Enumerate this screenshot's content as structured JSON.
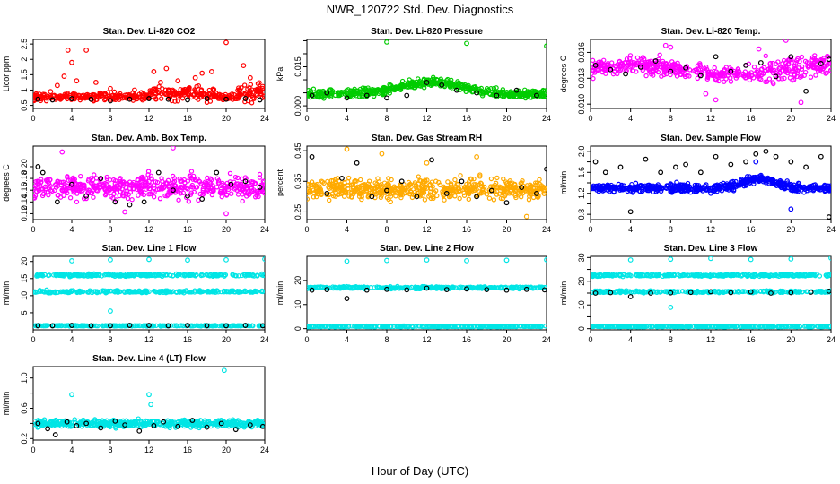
{
  "figure": {
    "title": "NWR_120722 Std. Dev. Diagnostics",
    "xlabel": "Hour of Day (UTC)"
  },
  "chart_data": [
    {
      "id": "co2",
      "type": "scatter",
      "title": "Stan. Dev. Li-820 CO2",
      "ylabel": "Licor ppm",
      "xlim": [
        0,
        24
      ],
      "ylim": [
        0.4,
        2.65
      ],
      "xticks": [
        0,
        4,
        8,
        12,
        16,
        20,
        24
      ],
      "yticks": [
        0.5,
        1.0,
        1.5,
        2.0,
        2.5
      ],
      "ytick_labels": [
        "0.5",
        "1",
        "1.5",
        "2",
        "2.5"
      ],
      "colors": [
        "#ff0000",
        "#000000"
      ],
      "series": [
        {
          "color": "#ff0000",
          "x": [
            0.5,
            1.8,
            2.5,
            3.2,
            3.6,
            4.0,
            4.5,
            5.5,
            6.5,
            8.0,
            10.5,
            12.5,
            13.2,
            13.8,
            15.0,
            16.8,
            17.5,
            18.5,
            20.0,
            21.8,
            22.5,
            23.2
          ],
          "y": [
            0.72,
            0.95,
            1.15,
            1.45,
            2.3,
            1.9,
            1.3,
            2.3,
            1.25,
            1.05,
            1.0,
            1.6,
            1.25,
            1.7,
            1.3,
            1.4,
            1.55,
            1.6,
            2.55,
            1.8,
            1.4,
            1.0
          ]
        },
        {
          "color": "#000000",
          "x": [
            0.5,
            2.0,
            4.0,
            6.0,
            8.0,
            10.0,
            12.0,
            14.0,
            16.0,
            18.0,
            20.0,
            22.0,
            23.5
          ],
          "y": [
            0.7,
            0.68,
            0.72,
            0.7,
            0.65,
            0.7,
            0.72,
            0.7,
            0.68,
            0.72,
            0.7,
            0.72,
            0.68
          ]
        }
      ]
    },
    {
      "id": "press",
      "type": "scatter",
      "title": "Stan. Dev. Li-820 Pressure",
      "ylabel": "kPa",
      "xlim": [
        0,
        24
      ],
      "ylim": [
        -0.001,
        0.0255
      ],
      "xticks": [
        0,
        4,
        8,
        12,
        16,
        20,
        24
      ],
      "yticks": [
        0.0,
        0.005,
        0.01,
        0.015,
        0.02,
        0.025
      ],
      "ytick_labels": [
        "0.000",
        "",
        "",
        "0.015",
        "",
        ""
      ],
      "colors": [
        "#00cc00",
        "#000000"
      ],
      "series": [
        {
          "color": "#00cc00",
          "x": [
            8.0,
            16.0,
            24.0
          ],
          "y": [
            0.0245,
            0.024,
            0.023
          ]
        },
        {
          "color": "#000000",
          "x": [
            0.5,
            2.0,
            4.0,
            6.0,
            8.0,
            10.0,
            12.0,
            13.5,
            15.0,
            17.0,
            19.0,
            21.0,
            23.0
          ],
          "y": [
            0.004,
            0.005,
            0.003,
            0.004,
            0.003,
            0.004,
            0.009,
            0.008,
            0.006,
            0.005,
            0.004,
            0.006,
            0.004
          ]
        }
      ]
    },
    {
      "id": "temp",
      "type": "scatter",
      "title": "Stan. Dev. Li-820 Temp.",
      "ylabel": "degrees C",
      "xlim": [
        0,
        24
      ],
      "ylim": [
        0.0095,
        0.0175
      ],
      "xticks": [
        0,
        4,
        8,
        12,
        16,
        20,
        24
      ],
      "yticks": [
        0.01,
        0.013,
        0.016
      ],
      "ytick_labels": [
        "0.010",
        "0.013",
        "0.016"
      ],
      "colors": [
        "#ff00ff",
        "#000000"
      ],
      "series": [
        {
          "color": "#ff00ff",
          "x": [
            7.5,
            8.0,
            16.8,
            19.5,
            12.5,
            11.5,
            21.0
          ],
          "y": [
            0.0168,
            0.0166,
            0.0164,
            0.0174,
            0.0105,
            0.0112,
            0.0102
          ]
        },
        {
          "color": "#000000",
          "x": [
            0.5,
            2.0,
            3.5,
            5.0,
            6.5,
            8.0,
            9.5,
            11.0,
            12.5,
            14.0,
            15.5,
            17.0,
            18.5,
            20.0,
            21.5,
            23.0,
            23.8
          ],
          "y": [
            0.0145,
            0.014,
            0.0135,
            0.0143,
            0.015,
            0.0138,
            0.0142,
            0.0133,
            0.0155,
            0.0138,
            0.0145,
            0.0148,
            0.0132,
            0.0155,
            0.0115,
            0.0147,
            0.0152
          ]
        }
      ]
    },
    {
      "id": "box",
      "type": "scatter",
      "title": "Stan. Dev. Amb. Box Temp.",
      "ylabel": "degrees C",
      "xlim": [
        0,
        24
      ],
      "ylim": [
        0.11,
        0.235
      ],
      "xticks": [
        0,
        4,
        8,
        12,
        16,
        20,
        24
      ],
      "yticks": [
        0.12,
        0.14,
        0.16,
        0.18,
        0.2
      ],
      "ytick_labels": [
        "0.12",
        "0.14",
        "0.16",
        "0.18",
        "0.20"
      ],
      "colors": [
        "#ff00ff",
        "#000000"
      ],
      "series": [
        {
          "color": "#ff00ff",
          "x": [
            14.5,
            3.0,
            20.0,
            9.5
          ],
          "y": [
            0.232,
            0.225,
            0.12,
            0.123
          ]
        },
        {
          "color": "#000000",
          "x": [
            0.5,
            1.0,
            2.5,
            4.0,
            5.5,
            7.0,
            8.5,
            10.0,
            11.5,
            13.0,
            14.5,
            16.0,
            17.5,
            19.0,
            20.5,
            22.0,
            23.5
          ],
          "y": [
            0.2,
            0.19,
            0.14,
            0.17,
            0.15,
            0.18,
            0.14,
            0.135,
            0.14,
            0.19,
            0.16,
            0.15,
            0.145,
            0.19,
            0.17,
            0.175,
            0.165
          ]
        }
      ]
    },
    {
      "id": "rh",
      "type": "scatter",
      "title": "Stan. Dev. Gas Stream RH",
      "ylabel": "percent",
      "xlim": [
        0,
        24
      ],
      "ylim": [
        0.225,
        0.465
      ],
      "xticks": [
        0,
        4,
        8,
        12,
        16,
        20,
        24
      ],
      "yticks": [
        0.25,
        0.35,
        0.45
      ],
      "ytick_labels": [
        "0.25",
        "0.35",
        "0.45"
      ],
      "colors": [
        "#ffaa00",
        "#000000"
      ],
      "series": [
        {
          "color": "#ffaa00",
          "x": [
            4.0,
            7.5,
            12.0,
            17.0,
            22.0
          ],
          "y": [
            0.455,
            0.44,
            0.41,
            0.43,
            0.235
          ]
        },
        {
          "color": "#000000",
          "x": [
            0.5,
            2.0,
            3.5,
            5.0,
            6.5,
            8.0,
            9.5,
            11.0,
            12.5,
            14.0,
            15.5,
            17.0,
            18.5,
            20.0,
            21.5,
            23.0,
            24.0
          ],
          "y": [
            0.43,
            0.31,
            0.36,
            0.41,
            0.3,
            0.32,
            0.35,
            0.3,
            0.42,
            0.31,
            0.35,
            0.3,
            0.32,
            0.28,
            0.33,
            0.31,
            0.39
          ]
        }
      ]
    },
    {
      "id": "sample",
      "type": "scatter",
      "title": "Stan. Dev. Sample Flow",
      "ylabel": "ml/min",
      "xlim": [
        0,
        24
      ],
      "ylim": [
        0.7,
        2.1
      ],
      "xticks": [
        0,
        4,
        8,
        12,
        16,
        20,
        24
      ],
      "yticks": [
        0.8,
        1.0,
        1.2,
        1.4,
        1.6,
        1.8,
        2.0
      ],
      "ytick_labels": [
        "0.8",
        "",
        "1.2",
        "",
        "1.6",
        "",
        "2.0"
      ],
      "colors": [
        "#0000ff",
        "#000000"
      ],
      "series": [
        {
          "color": "#0000ff",
          "x": [
            4.0,
            8.0,
            12.0,
            16.5,
            20.0,
            23.5
          ],
          "y": [
            1.25,
            1.35,
            1.2,
            1.8,
            0.9,
            1.3
          ]
        },
        {
          "color": "#000000",
          "x": [
            0.5,
            1.5,
            3.0,
            4.0,
            5.5,
            7.0,
            8.5,
            9.5,
            11.0,
            12.5,
            14.0,
            15.5,
            16.5,
            17.5,
            18.5,
            20.0,
            21.5,
            23.0,
            23.8
          ],
          "y": [
            1.8,
            1.6,
            1.7,
            0.85,
            1.85,
            1.6,
            1.7,
            1.75,
            1.6,
            1.9,
            1.75,
            1.8,
            1.95,
            2.0,
            1.9,
            1.8,
            1.7,
            1.9,
            0.75
          ]
        }
      ]
    },
    {
      "id": "line1",
      "type": "scatter",
      "title": "Stan. Dev. Line 1 Flow",
      "ylabel": "ml/min",
      "xlim": [
        0,
        24
      ],
      "ylim": [
        0,
        21.5
      ],
      "xticks": [
        0,
        4,
        8,
        12,
        16,
        20,
        24
      ],
      "yticks": [
        5,
        10,
        15,
        20
      ],
      "ytick_labels": [
        "5",
        "10",
        "15",
        "20"
      ],
      "colors": [
        "#00e5e5",
        "#000000"
      ],
      "series": [
        {
          "color": "#00e5e5",
          "x": [
            4.0,
            8.0,
            12.0,
            16.0,
            20.0,
            24.0,
            8.0
          ],
          "y": [
            20.2,
            20.5,
            20.6,
            20.4,
            20.5,
            20.7,
            5.5
          ]
        },
        {
          "color": "#000000",
          "x": [
            0.5,
            2.0,
            4.0,
            6.0,
            8.0,
            10.0,
            12.0,
            14.0,
            16.0,
            18.0,
            20.0,
            22.0,
            23.8
          ],
          "y": [
            1.2,
            1.2,
            1.3,
            1.2,
            1.2,
            1.3,
            1.3,
            1.2,
            1.3,
            1.2,
            1.2,
            1.3,
            1.2
          ]
        }
      ]
    },
    {
      "id": "line2",
      "type": "scatter",
      "title": "Stan. Dev. Line 2 Flow",
      "ylabel": "ml/min",
      "xlim": [
        0,
        24
      ],
      "ylim": [
        -0.5,
        30
      ],
      "xticks": [
        0,
        4,
        8,
        12,
        16,
        20,
        24
      ],
      "yticks": [
        0,
        10,
        20
      ],
      "ytick_labels": [
        "0",
        "10",
        "20"
      ],
      "colors": [
        "#00e5e5",
        "#000000"
      ],
      "series": [
        {
          "color": "#00e5e5",
          "x": [
            4.0,
            8.0,
            12.0,
            16.0,
            20.0,
            24.0
          ],
          "y": [
            28.0,
            28.3,
            28.5,
            28.2,
            28.4,
            28.6
          ]
        },
        {
          "color": "#000000",
          "x": [
            0.5,
            2.0,
            4.0,
            6.0,
            8.0,
            10.0,
            12.0,
            14.0,
            16.0,
            18.0,
            20.0,
            22.0,
            23.8
          ],
          "y": [
            16.0,
            16.2,
            12.5,
            16.0,
            16.3,
            16.1,
            16.8,
            16.2,
            16.5,
            16.2,
            16.0,
            16.3,
            16.1
          ]
        }
      ]
    },
    {
      "id": "line3",
      "type": "scatter",
      "title": "Stan. Dev. Line 3 Flow",
      "ylabel": "ml/min",
      "xlim": [
        0,
        24
      ],
      "ylim": [
        -0.5,
        30.5
      ],
      "xticks": [
        0,
        4,
        8,
        12,
        16,
        20,
        24
      ],
      "yticks": [
        0,
        5,
        10,
        15,
        20,
        25,
        30
      ],
      "ytick_labels": [
        "0",
        "",
        "10",
        "",
        "20",
        "",
        "30"
      ],
      "colors": [
        "#00e5e5",
        "#000000"
      ],
      "series": [
        {
          "color": "#00e5e5",
          "x": [
            4.0,
            8.0,
            12.0,
            16.0,
            20.0,
            24.0,
            8.0
          ],
          "y": [
            29.0,
            29.3,
            29.6,
            29.2,
            29.4,
            29.8,
            9.0
          ]
        },
        {
          "color": "#000000",
          "x": [
            0.5,
            2.0,
            4.0,
            6.0,
            8.0,
            10.0,
            12.0,
            14.0,
            16.0,
            18.0,
            20.0,
            22.0,
            23.8
          ],
          "y": [
            15.0,
            15.2,
            13.5,
            15.0,
            15.1,
            15.3,
            15.6,
            15.2,
            15.5,
            15.0,
            15.2,
            15.4,
            15.8
          ]
        }
      ]
    },
    {
      "id": "line4",
      "type": "scatter",
      "title": "Stan. Dev. Line 4 (LT) Flow",
      "ylabel": "ml/min",
      "xlim": [
        0,
        24
      ],
      "ylim": [
        0.18,
        1.15
      ],
      "xticks": [
        0,
        4,
        8,
        12,
        16,
        20,
        24
      ],
      "yticks": [
        0.2,
        0.4,
        0.6,
        0.8,
        1.0
      ],
      "ytick_labels": [
        "0.2",
        "",
        "0.6",
        "",
        "1.0"
      ],
      "colors": [
        "#00e5e5",
        "#000000"
      ],
      "series": [
        {
          "color": "#00e5e5",
          "x": [
            4.0,
            12.0,
            12.2,
            19.8
          ],
          "y": [
            0.78,
            0.78,
            0.65,
            1.1
          ]
        },
        {
          "color": "#000000",
          "x": [
            0.5,
            1.5,
            2.3,
            3.5,
            4.5,
            5.5,
            7.0,
            8.5,
            9.5,
            11.0,
            12.5,
            13.5,
            15.0,
            16.5,
            18.0,
            19.5,
            21.0,
            22.5,
            23.8
          ],
          "y": [
            0.4,
            0.33,
            0.25,
            0.42,
            0.37,
            0.4,
            0.34,
            0.43,
            0.38,
            0.3,
            0.37,
            0.42,
            0.36,
            0.44,
            0.35,
            0.4,
            0.32,
            0.38,
            0.36
          ]
        }
      ]
    }
  ]
}
